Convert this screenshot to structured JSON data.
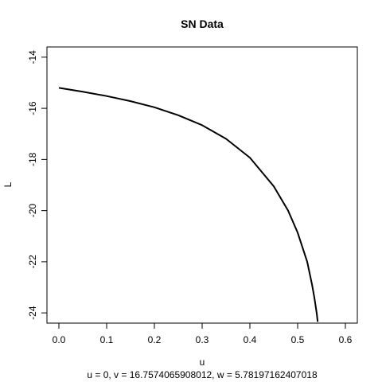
{
  "chart_data": {
    "type": "line",
    "title": "SN Data",
    "xlabel": "u",
    "ylabel": "L",
    "subtitle": "u = 0, v = 16.7574065908012, w = 5.78197162407018",
    "xlim": [
      -0.025,
      0.625
    ],
    "ylim": [
      -24.4,
      -13.6
    ],
    "xticks": [
      0.0,
      0.1,
      0.2,
      0.3,
      0.4,
      0.5,
      0.6
    ],
    "xtick_labels": [
      "0.0",
      "0.1",
      "0.2",
      "0.3",
      "0.4",
      "0.5",
      "0.6"
    ],
    "yticks": [
      -24,
      -22,
      -20,
      -18,
      -16,
      -14
    ],
    "ytick_labels": [
      "-24",
      "-22",
      "-20",
      "-18",
      "-16",
      "-14"
    ],
    "grid": false,
    "series": [
      {
        "color": "#000000",
        "x": [
          0.0,
          0.05,
          0.1,
          0.15,
          0.2,
          0.25,
          0.3,
          0.35,
          0.4,
          0.45,
          0.48,
          0.5,
          0.52,
          0.53,
          0.535,
          0.54,
          0.542
        ],
        "y": [
          -15.2,
          -15.35,
          -15.52,
          -15.72,
          -15.96,
          -16.27,
          -16.66,
          -17.19,
          -17.93,
          -19.05,
          -20.0,
          -20.86,
          -22.0,
          -22.88,
          -23.4,
          -24.02,
          -24.35
        ]
      }
    ]
  }
}
